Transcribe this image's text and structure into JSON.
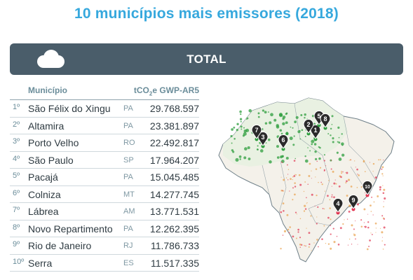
{
  "title": "10 municípios mais emissores (2018)",
  "bar": {
    "label": "TOTAL",
    "icon": "cloud-icon"
  },
  "table": {
    "col_municipio": "Município",
    "col_value_prefix": "tCO",
    "col_value_sub": "2",
    "col_value_suffix": "e GWP-AR5",
    "rows": [
      {
        "rank": "1º",
        "name": "São Félix do Xingu",
        "uf": "PA",
        "value": "29.768.597"
      },
      {
        "rank": "2º",
        "name": "Altamira",
        "uf": "PA",
        "value": "23.381.897"
      },
      {
        "rank": "3º",
        "name": "Porto Velho",
        "uf": "RO",
        "value": "22.492.817"
      },
      {
        "rank": "4º",
        "name": "São Paulo",
        "uf": "SP",
        "value": "17.964.207"
      },
      {
        "rank": "5º",
        "name": "Pacajá",
        "uf": "PA",
        "value": "15.045.485"
      },
      {
        "rank": "6º",
        "name": "Colniza",
        "uf": "MT",
        "value": "14.277.745"
      },
      {
        "rank": "7º",
        "name": "Lábrea",
        "uf": "AM",
        "value": "13.771.531"
      },
      {
        "rank": "8º",
        "name": "Novo Repartimento",
        "uf": "PA",
        "value": "12.262.395"
      },
      {
        "rank": "9º",
        "name": "Rio de Janeiro",
        "uf": "RJ",
        "value": "11.786.733"
      },
      {
        "rank": "10º",
        "name": "Serra",
        "uf": "ES",
        "value": "11.517.335"
      }
    ]
  },
  "map": {
    "markers": [
      "1",
      "2",
      "3",
      "4",
      "5",
      "6",
      "7",
      "8",
      "9",
      "10"
    ],
    "colors": {
      "marker": "#2b2b2b",
      "north_dots": "#2e9e3e",
      "south_dots": "#e0334f",
      "border": "#6e7f88"
    }
  }
}
